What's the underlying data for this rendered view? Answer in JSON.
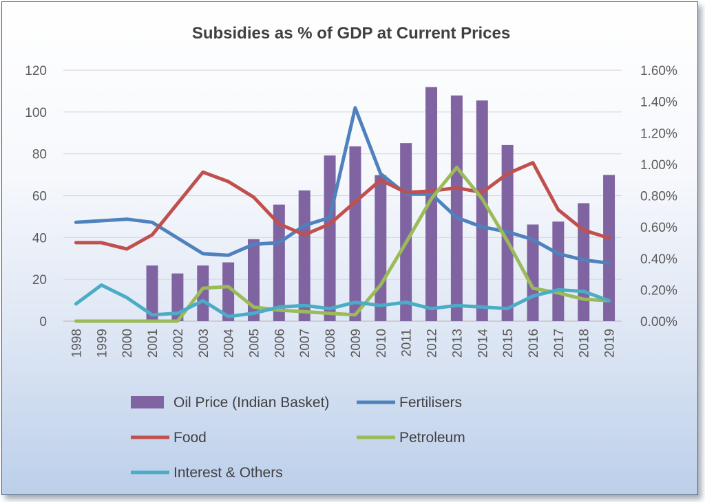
{
  "chart_data": {
    "type": "bar",
    "title": "Subsidies as % of GDP at Current Prices",
    "categories": [
      "1998",
      "1999",
      "2000",
      "2001",
      "2002",
      "2003",
      "2004",
      "2005",
      "2006",
      "2007",
      "2008",
      "2009",
      "2010",
      "2011",
      "2012",
      "2013",
      "2014",
      "2015",
      "2016",
      "2017",
      "2018",
      "2019"
    ],
    "y_left": {
      "ylim": [
        0,
        120
      ],
      "ticks": [
        "0",
        "20",
        "40",
        "60",
        "80",
        "100",
        "120"
      ]
    },
    "y_right": {
      "ylim": [
        0,
        0.016
      ],
      "ticks": [
        "0.00%",
        "0.20%",
        "0.40%",
        "0.60%",
        "0.80%",
        "1.00%",
        "1.20%",
        "1.40%",
        "1.60%"
      ]
    },
    "grid": true,
    "legend_position": "bottom",
    "series": [
      {
        "name": "Oil Price (Indian Basket)",
        "type": "bar",
        "axis": "left",
        "color": "#8064a2",
        "values": [
          null,
          null,
          null,
          26.6,
          22.8,
          26.6,
          28.1,
          39.2,
          55.7,
          62.5,
          79.2,
          83.6,
          69.8,
          85.1,
          111.9,
          107.9,
          105.5,
          84.2,
          46.2,
          47.6,
          56.4,
          69.9
        ]
      },
      {
        "name": "Fertilisers",
        "type": "line",
        "axis": "right",
        "color": "#4f81bd",
        "values": [
          0.0063,
          0.0064,
          0.0065,
          0.0063,
          0.0053,
          0.0043,
          0.0042,
          0.0049,
          0.005,
          0.0061,
          0.0066,
          0.0136,
          0.0094,
          0.0081,
          0.0081,
          0.0066,
          0.006,
          0.0057,
          0.0052,
          0.0043,
          0.0039,
          0.0037
        ]
      },
      {
        "name": "Food",
        "type": "line",
        "axis": "right",
        "color": "#c0504d",
        "values": [
          0.005,
          0.005,
          0.0046,
          0.0055,
          0.0075,
          0.0095,
          0.0089,
          0.0079,
          0.0062,
          0.0055,
          0.0062,
          0.0076,
          0.009,
          0.0082,
          0.0083,
          0.0085,
          0.0082,
          0.0094,
          0.0101,
          0.0071,
          0.0058,
          0.0053
        ]
      },
      {
        "name": "Petroleum",
        "type": "line",
        "axis": "right",
        "color": "#9bbb59",
        "values": [
          0.0,
          0.0,
          0.0,
          0.0,
          0.0,
          0.0021,
          0.0022,
          0.0009,
          0.0007,
          0.0006,
          0.0005,
          0.0004,
          0.0023,
          0.005,
          0.0078,
          0.0098,
          0.0078,
          0.0051,
          0.0021,
          0.0018,
          0.0014,
          0.0013
        ]
      },
      {
        "name": "Interest & Others",
        "type": "line",
        "axis": "right",
        "color": "#4bacc6",
        "values": [
          0.0011,
          0.0023,
          0.0015,
          0.0004,
          0.0005,
          0.0013,
          0.0003,
          0.0005,
          0.0009,
          0.001,
          0.0008,
          0.0012,
          0.001,
          0.0012,
          0.0008,
          0.001,
          0.0009,
          0.0008,
          0.0016,
          0.002,
          0.0019,
          0.0013
        ]
      }
    ]
  }
}
